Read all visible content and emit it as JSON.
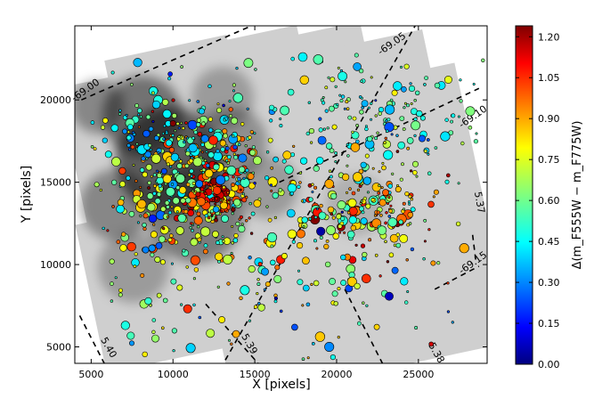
{
  "chart_data": {
    "type": "scatter",
    "title": "",
    "xlabel": "X [pixels]",
    "ylabel": "Y [pixels]",
    "xlim": [
      4000,
      29200
    ],
    "ylim": [
      4000,
      24500
    ],
    "x_ticks": [
      5000,
      10000,
      15000,
      20000,
      25000
    ],
    "y_ticks": [
      5000,
      10000,
      15000,
      20000
    ],
    "background": "grayscale mosaic image with star clusters",
    "colorbar": {
      "label": "Δ(m_F555W − m_F775W)",
      "min": 0.0,
      "max": 1.24,
      "ticks": [
        0.0,
        0.15,
        0.3,
        0.45,
        0.6,
        0.75,
        0.9,
        1.05,
        1.2
      ],
      "colormap": "jet"
    },
    "grid_lines": [
      {
        "label": "-69.00",
        "points": [
          [
            4400,
            20000
          ],
          [
            14800,
            24500
          ]
        ]
      },
      {
        "label": "-69.05",
        "points": [
          [
            13200,
            4200
          ],
          [
            24800,
            24500
          ]
        ]
      },
      {
        "label": "-69.10",
        "points": [
          [
            16500,
            15000
          ],
          [
            28700,
            20700
          ]
        ]
      },
      {
        "label": "5.37",
        "points": [
          [
            28500,
            10300
          ],
          [
            28300,
            11900
          ]
        ]
      },
      {
        "label": "-69.15",
        "points": [
          [
            26000,
            8500
          ],
          [
            28700,
            9900
          ]
        ]
      },
      {
        "label": "5.38",
        "points": [
          [
            20500,
            8500
          ],
          [
            22800,
            4000
          ]
        ]
      },
      {
        "label": "5.39",
        "points": [
          [
            12000,
            7600
          ],
          [
            15200,
            4000
          ]
        ]
      },
      {
        "label": "5.40",
        "points": [
          [
            4300,
            6900
          ],
          [
            5800,
            4000
          ]
        ]
      }
    ],
    "points_summary": "Approximately 1200 circles with colors encoding Δ(m_F555W − m_F775W) and sizes varying"
  }
}
